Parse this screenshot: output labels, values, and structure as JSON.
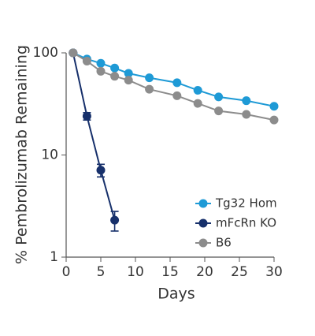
{
  "chart_data": {
    "type": "line",
    "x_label": "Days",
    "y_label": "% Pembrolizumab Remaining",
    "xlim": [
      0,
      30
    ],
    "xticks": [
      0,
      5,
      10,
      15,
      20,
      25,
      30
    ],
    "ylim": [
      1,
      100
    ],
    "yticks": [
      1,
      10,
      100
    ],
    "y_scale": "log",
    "legend": "right",
    "series": [
      {
        "name": "Tg32 Hom",
        "color": "#1e9ad6",
        "x": [
          1,
          3,
          5,
          7,
          9,
          12,
          16,
          19,
          22,
          26,
          30
        ],
        "values": [
          100,
          87,
          79,
          71,
          63,
          57,
          51,
          43,
          37,
          34,
          30
        ]
      },
      {
        "name": "mFcRn KO",
        "color": "#17306b",
        "x": [
          1,
          3,
          5,
          7
        ],
        "values": [
          100,
          24,
          7.1,
          2.3
        ],
        "errors": [
          0,
          2,
          1,
          0.5
        ]
      },
      {
        "name": "B6",
        "color": "#8c8c8c",
        "x": [
          1,
          3,
          5,
          7,
          9,
          12,
          16,
          19,
          22,
          26,
          30
        ],
        "values": [
          100,
          83,
          66,
          59,
          54,
          44,
          38,
          32,
          27,
          25,
          22
        ]
      }
    ]
  }
}
